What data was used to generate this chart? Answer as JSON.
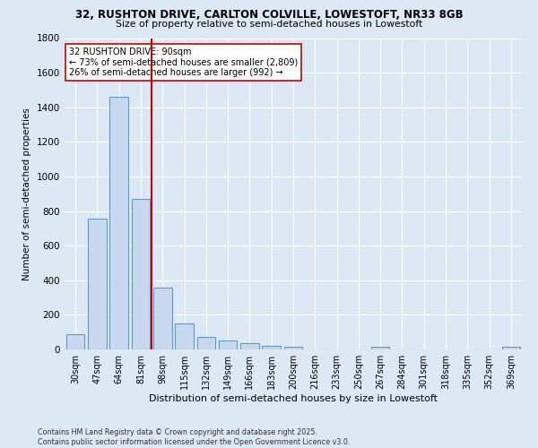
{
  "title1": "32, RUSHTON DRIVE, CARLTON COLVILLE, LOWESTOFT, NR33 8GB",
  "title2": "Size of property relative to semi-detached houses in Lowestoft",
  "xlabel": "Distribution of semi-detached houses by size in Lowestoft",
  "ylabel": "Number of semi-detached properties",
  "bin_labels": [
    "30sqm",
    "47sqm",
    "64sqm",
    "81sqm",
    "98sqm",
    "115sqm",
    "132sqm",
    "149sqm",
    "166sqm",
    "183sqm",
    "200sqm",
    "216sqm",
    "233sqm",
    "250sqm",
    "267sqm",
    "284sqm",
    "301sqm",
    "318sqm",
    "335sqm",
    "352sqm",
    "369sqm"
  ],
  "bin_values": [
    90,
    755,
    1460,
    870,
    355,
    150,
    73,
    53,
    35,
    22,
    18,
    0,
    0,
    0,
    15,
    0,
    0,
    0,
    0,
    0,
    15
  ],
  "annotation_title": "32 RUSHTON DRIVE: 90sqm",
  "annotation_line1": "← 73% of semi-detached houses are smaller (2,809)",
  "annotation_line2": "26% of semi-detached houses are larger (992) →",
  "bar_color": "#c8d9ed",
  "bar_edge_color": "#5b9bd5",
  "line_color": "#cc0000",
  "background_color": "#dce9f5",
  "annotation_box_color": "#ffffff",
  "annotation_box_edge": "#cc0000",
  "footer1": "Contains HM Land Registry data © Crown copyright and database right 2025.",
  "footer2": "Contains public sector information licensed under the Open Government Licence v3.0.",
  "ylim": [
    0,
    1800
  ],
  "yticks": [
    0,
    200,
    400,
    600,
    800,
    1000,
    1200,
    1400,
    1600,
    1800
  ],
  "property_line_x": 3.5
}
